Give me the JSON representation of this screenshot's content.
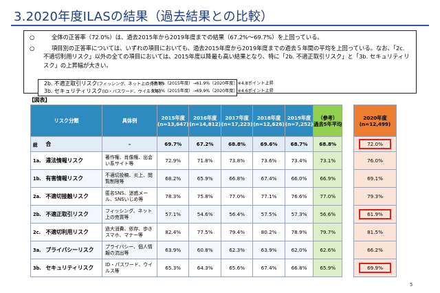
{
  "title": "3.2020年度ILASの結果（過去結果との比較）",
  "summary": {
    "bullet_mark": "○",
    "bullet1": "全体の正答率（72.0%）は、過去2015年から2019年度までの結果（67.2%〜69.7%）を上回っている。",
    "bullet2": "項目別の正答率については、いずれの項目においても、過去2015年度から2019年度までの過去５年間の平均を上回っている。なお、「2c. 不適切利用リスク」以外の全ての項目においては、2015年度以降最も高い結果となり、特に「2b. 不適正取引リスク」と「3b. セキュリティリスク」の上昇幅が大きい。",
    "notes": [
      {
        "label": "2b. 不適正取引リスク",
        "sub": "(フィッシング、ネット上の売買等)",
        "value": "：57.1%（2015年度）→61.9%（2020年度）※4.8ポイント上昇"
      },
      {
        "label": "3b. セキュリティリスク",
        "sub": "(ID・パスワード、ウイルス等)",
        "value": "：65.3%（2015年度）→69.9%（2020年度）※4.6ポイント上昇"
      }
    ]
  },
  "figure_label": "【図表】",
  "table": {
    "headers": {
      "category": "リスク分類",
      "example": "具体例",
      "y2015": "2015年度",
      "y2015_n": "(n=13,647)",
      "y2016": "2016年度",
      "y2016_n": "(n=14,812)",
      "y2017": "2017年度",
      "y2017_n": "(n=17,223)",
      "y2018": "2018年度",
      "y2018_n": "(n=12,626)",
      "y2019": "2019年度",
      "y2019_n": "(n=7,252)",
      "ref": "（参考）",
      "ref2": "過去5年平均",
      "y2020": "2020年度",
      "y2020_n": "(n=12,499)"
    },
    "total": {
      "code": "総",
      "label": "合",
      "example": "–",
      "values": [
        "69.7%",
        "67.2%",
        "68.8%",
        "69.6%",
        "68.7%"
      ],
      "avg": "68.8%",
      "y2020": "72.0%"
    },
    "rows": [
      {
        "code": "1a.",
        "label": "違法情報リスク",
        "example": "著作権、肖像権、出会い系サイト等",
        "values": [
          "72.9%",
          "71.8%",
          "73.8%",
          "73.6%",
          "73.4%"
        ],
        "avg": "73.1%",
        "y2020": "76.0%"
      },
      {
        "code": "1b.",
        "label": "有害情報リスク",
        "example": "不適切投稿、炎上、閲覧制限等",
        "values": [
          "68.2%",
          "65.9%",
          "66.8%",
          "67.4%",
          "66.0%"
        ],
        "avg": "66.9%",
        "y2020": "69.1%"
      },
      {
        "code": "2a.",
        "label": "不適切接触リスク",
        "example": "匿名SNS、迷惑メール、SNSいじめ等",
        "values": [
          "78.3%",
          "75.8%",
          "77.0%",
          "77.1%",
          "76.6%"
        ],
        "avg": "77.0%",
        "y2020": "79.3%"
      },
      {
        "code": "2b.",
        "label": "不適正取引リスク",
        "example": "フィッシング、ネット上の売買等",
        "values": [
          "57.1%",
          "54.6%",
          "56.4%",
          "57.5%",
          "57.3%"
        ],
        "avg": "56.6%",
        "y2020": "61.9%"
      },
      {
        "code": "2c.",
        "label": "不適切利用リスク",
        "example": "過大消費、依存、歩きスマホ、マナー等",
        "values": [
          "82.4%",
          "77.5%",
          "79.4%",
          "80.2%",
          "78.9%"
        ],
        "avg": "79.7%",
        "y2020": "81.5%"
      },
      {
        "code": "3a.",
        "label": "プライバシーリスク",
        "example": "プライバシー、個人情報の流出等",
        "values": [
          "63.9%",
          "60.8%",
          "62.3%",
          "63.9%",
          "62.0%"
        ],
        "avg": "62.6%",
        "y2020": "66.2%"
      },
      {
        "code": "3b.",
        "label": "セキュリティリスク",
        "example": "ID・パスワード、ウイルス等",
        "values": [
          "65.3%",
          "64.3%",
          "65.6%",
          "67.4%",
          "66.8%"
        ],
        "avg": "65.9%",
        "y2020": "69.9%"
      }
    ]
  },
  "highlight_color": "#e02020",
  "page_number": "5"
}
